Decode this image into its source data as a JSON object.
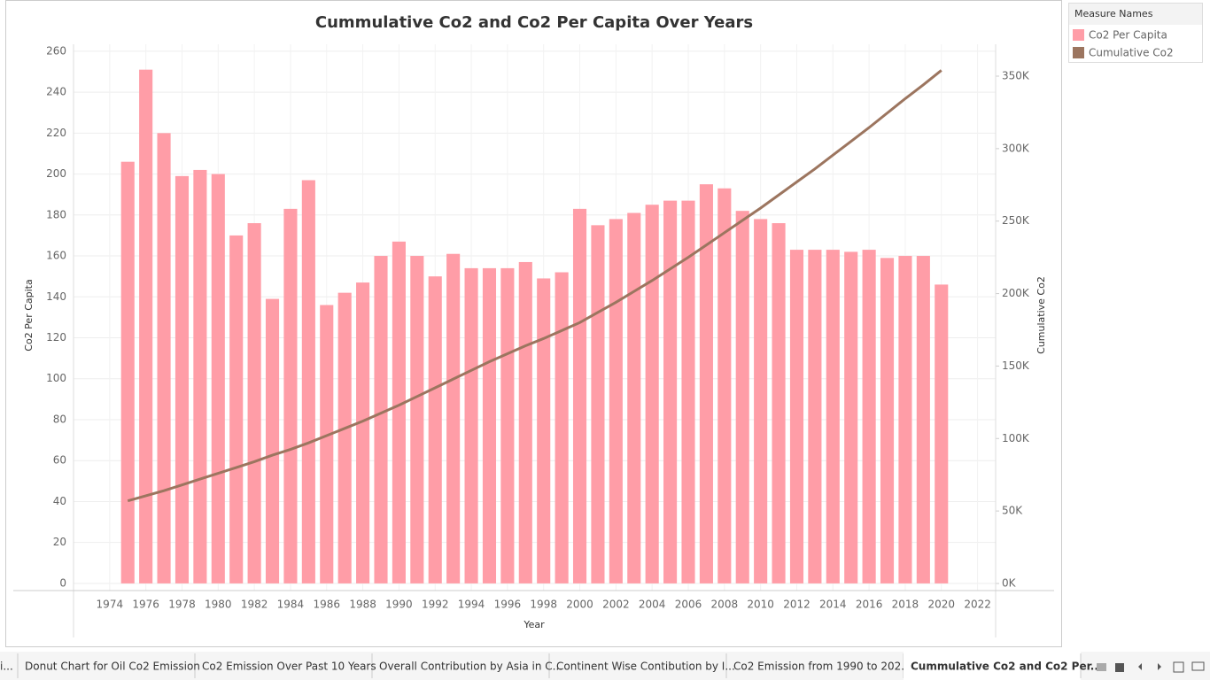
{
  "chart_data": {
    "type": "bar_line",
    "title": "Cummulative Co2 and Co2 Per Capita Over Years",
    "x_label": "Year",
    "y_label": "Co2 Per Capita",
    "y2_label": "Cumulative Co2",
    "legend_title": "Measure Names",
    "x": [
      1975,
      1976,
      1977,
      1978,
      1979,
      1980,
      1981,
      1982,
      1983,
      1984,
      1985,
      1986,
      1987,
      1988,
      1989,
      1990,
      1991,
      1992,
      1993,
      1994,
      1995,
      1996,
      1997,
      1998,
      1999,
      2000,
      2001,
      2002,
      2003,
      2004,
      2005,
      2006,
      2007,
      2008,
      2009,
      2010,
      2011,
      2012,
      2013,
      2014,
      2015,
      2016,
      2017,
      2018,
      2019,
      2020
    ],
    "series": [
      {
        "name": "Co2 Per Capita",
        "color": "#ff9da7",
        "kind": "bar",
        "values": [
          206,
          251,
          220,
          199,
          202,
          200,
          170,
          176,
          139,
          183,
          197,
          136,
          142,
          147,
          160,
          167,
          160,
          150,
          161,
          154,
          154,
          154,
          157,
          149,
          152,
          183,
          175,
          178,
          181,
          185,
          187,
          187,
          195,
          193,
          182,
          178,
          176,
          163,
          163,
          163,
          162,
          163,
          159,
          160,
          160,
          146
        ]
      },
      {
        "name": "Cumulative Co2",
        "color": "#9c755f",
        "kind": "line",
        "axis": "y2",
        "values": [
          57000,
          60500,
          64000,
          68000,
          72000,
          76000,
          80000,
          84000,
          88500,
          92500,
          97000,
          102000,
          107000,
          112000,
          117500,
          123000,
          129000,
          135000,
          141000,
          147000,
          153000,
          158500,
          164000,
          169000,
          174500,
          180000,
          187000,
          194000,
          201500,
          209000,
          217000,
          225000,
          233500,
          242000,
          250500,
          259000,
          268000,
          277000,
          286000,
          295500,
          305000,
          314500,
          324500,
          334500,
          344000,
          354000
        ]
      }
    ],
    "xlim": [
      1972,
      2023
    ],
    "xticks": [
      1974,
      1976,
      1978,
      1980,
      1982,
      1984,
      1986,
      1988,
      1990,
      1992,
      1994,
      1996,
      1998,
      2000,
      2002,
      2004,
      2006,
      2008,
      2010,
      2012,
      2014,
      2016,
      2018,
      2020,
      2022
    ],
    "ylim": [
      -3.5,
      263.4
    ],
    "yticks": [
      0,
      20,
      40,
      60,
      80,
      100,
      120,
      140,
      160,
      180,
      200,
      220,
      240,
      260
    ],
    "y2lim": [
      -4900,
      372000
    ],
    "y2ticks": [
      {
        "value": 0,
        "label": "0K"
      },
      {
        "value": 50000,
        "label": "50K"
      },
      {
        "value": 100000,
        "label": "100K"
      },
      {
        "value": 150000,
        "label": "150K"
      },
      {
        "value": 200000,
        "label": "200K"
      },
      {
        "value": 250000,
        "label": "250K"
      },
      {
        "value": 300000,
        "label": "300K"
      },
      {
        "value": 350000,
        "label": "350K"
      }
    ],
    "grid": true
  },
  "tabs": [
    "i...",
    "Donut Chart for Oil Co2 Emission",
    "Co2 Emission Over Past 10 Years",
    "Overall Contribution by Asia in C...",
    "Continent Wise Contibution by I...",
    "Co2 Emission from 1990 to 202...",
    "Cummulative Co2 and Co2 Per..."
  ],
  "active_tab": 6
}
